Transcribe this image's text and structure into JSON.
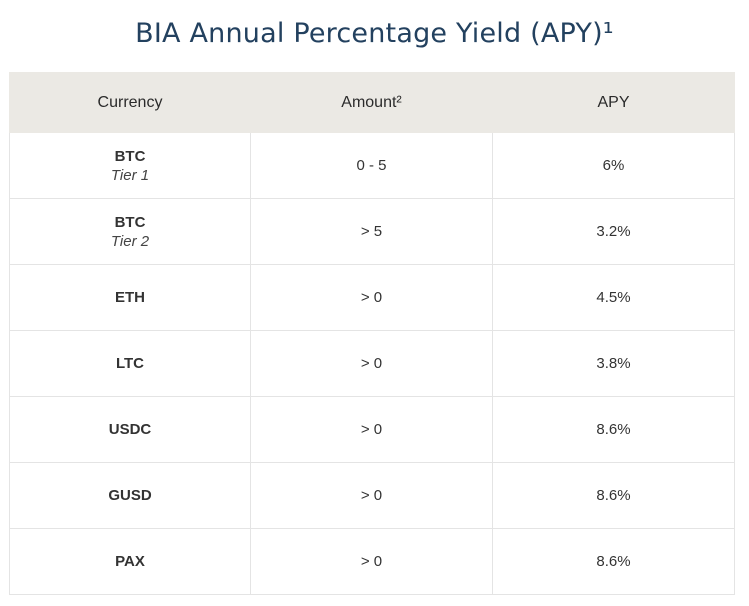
{
  "title": "BIA Annual Percentage Yield (APY)¹",
  "table": {
    "headers": {
      "currency": "Currency",
      "amount": "Amount²",
      "apy": "APY"
    },
    "rows": [
      {
        "currency": "BTC",
        "tier": "Tier 1",
        "amount": "0 - 5",
        "apy": "6%"
      },
      {
        "currency": "BTC",
        "tier": "Tier 2",
        "amount": "> 5",
        "apy": "3.2%"
      },
      {
        "currency": "ETH",
        "tier": "",
        "amount": "> 0",
        "apy": "4.5%"
      },
      {
        "currency": "LTC",
        "tier": "",
        "amount": "> 0",
        "apy": "3.8%"
      },
      {
        "currency": "USDC",
        "tier": "",
        "amount": "> 0",
        "apy": "8.6%"
      },
      {
        "currency": "GUSD",
        "tier": "",
        "amount": "> 0",
        "apy": "8.6%"
      },
      {
        "currency": "PAX",
        "tier": "",
        "amount": "> 0",
        "apy": "8.6%"
      }
    ]
  },
  "colors": {
    "title": "#23415f",
    "header_bg": "#ebe9e4",
    "border": "#e4e4e4",
    "text": "#333333"
  }
}
